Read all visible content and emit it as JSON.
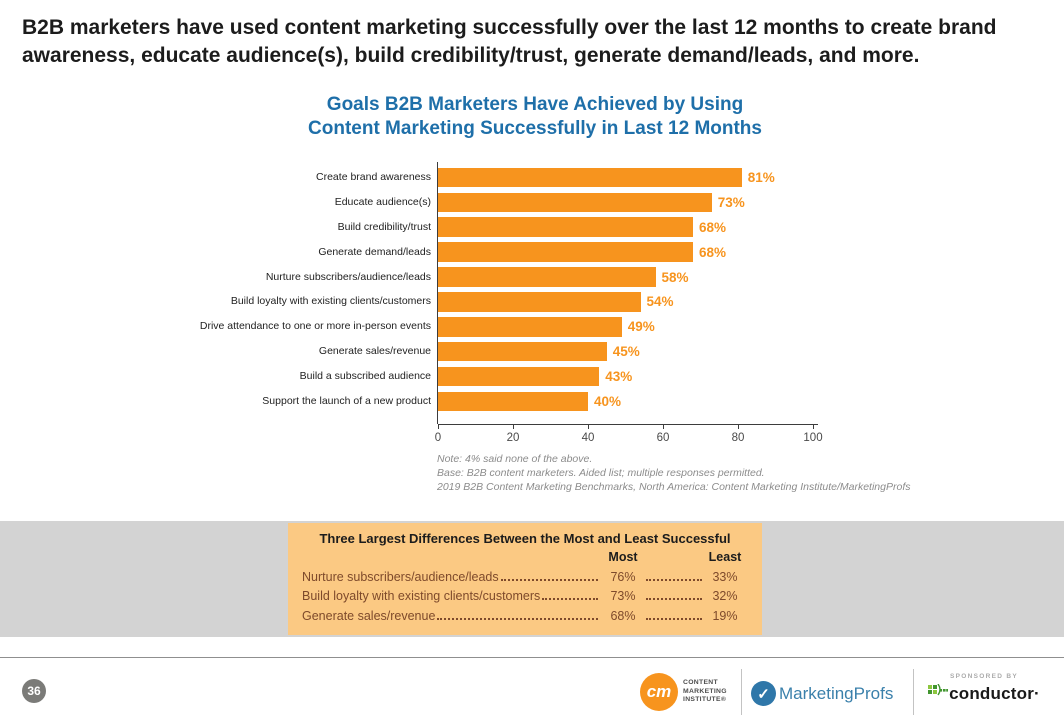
{
  "header": {
    "lines": [
      "B2B marketers have used content marketing successfully over the last 12 months to create brand",
      "awareness, educate audience(s), build credibility/trust, generate demand/leads, and more."
    ]
  },
  "chart_data": {
    "type": "bar",
    "orientation": "horizontal",
    "title_lines": [
      "Goals B2B Marketers Have Achieved by Using",
      "Content Marketing Successfully in Last 12 Months"
    ],
    "categories": [
      "Create brand awareness",
      "Educate audience(s)",
      "Build credibility/trust",
      "Generate demand/leads",
      "Nurture subscribers/audience/leads",
      "Build loyalty with existing clients/customers",
      "Drive attendance to one or more in-person events",
      "Generate sales/revenue",
      "Build a subscribed audience",
      "Support the launch of a new product"
    ],
    "values": [
      81,
      73,
      68,
      68,
      58,
      54,
      49,
      45,
      43,
      40
    ],
    "value_suffix": "%",
    "xlim": [
      0,
      100
    ],
    "x_ticks": [
      0,
      20,
      40,
      60,
      80,
      100
    ],
    "grid": false,
    "legend": false,
    "notes": [
      "Note: 4% said none of the above.",
      "Base: B2B content marketers. Aided list; multiple responses permitted.",
      "2019 B2B Content Marketing Benchmarks, North America: Content Marketing Institute/MarketingProfs"
    ]
  },
  "diff_table": {
    "title": "Three Largest Differences Between the Most and Least Successful",
    "col_most": "Most",
    "col_least": "Least",
    "rows": [
      {
        "label": "Nurture subscribers/audience/leads",
        "most": "76%",
        "least": "33%"
      },
      {
        "label": "Build loyalty with existing clients/customers",
        "most": "73%",
        "least": "32%"
      },
      {
        "label": "Generate sales/revenue",
        "most": "68%",
        "least": "19%"
      }
    ]
  },
  "footer": {
    "page_number": "36",
    "cmi": {
      "monogram": "cm",
      "lines": [
        "CONTENT",
        "MARKETING",
        "INSTITUTE®"
      ]
    },
    "marketingprofs": {
      "name": "MarketingProfs",
      "check": "✓"
    },
    "sponsor": {
      "label": "SPONSORED BY",
      "name": "conductor·"
    }
  },
  "colors": {
    "bar_orange": "#F7941E",
    "value_orange": "#F7941E",
    "title_blue": "#1E6FA9",
    "panel_bg": "#FBC983",
    "panel_text_brown": "#7E4A2B",
    "gray_band": "#D3D3D3",
    "note_gray": "#8C8C8C",
    "badge_gray": "#7B7B78",
    "mp_blue": "#2F77A9",
    "conductor_green_light": "#8DC63F",
    "conductor_green_dark": "#41952F"
  }
}
